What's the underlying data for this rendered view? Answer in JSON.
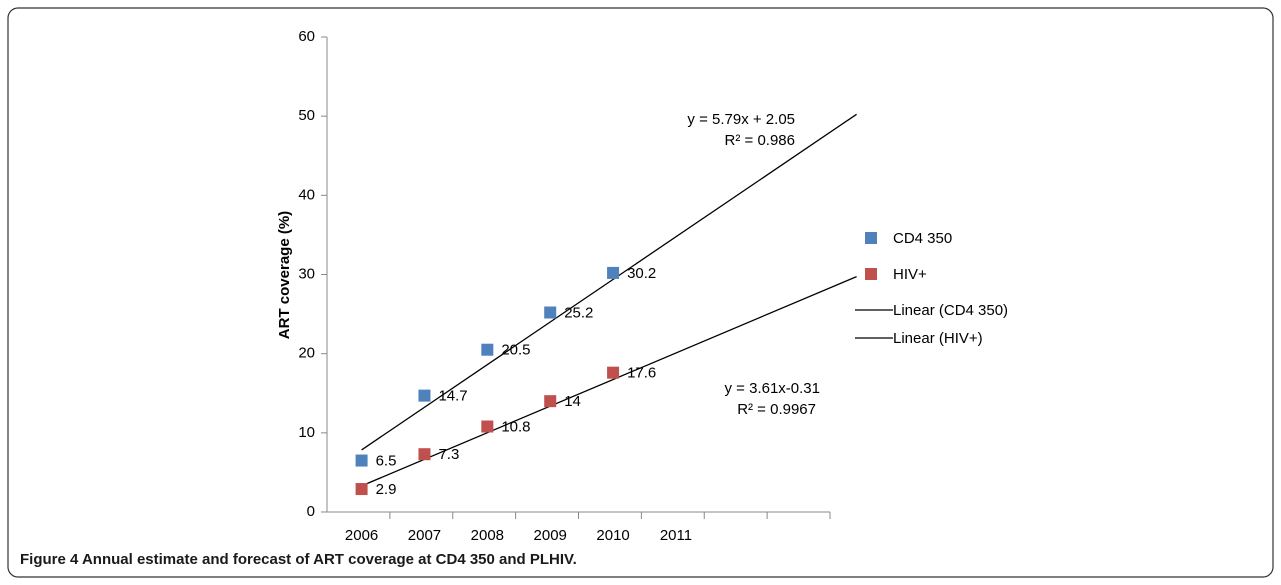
{
  "chart_data": {
    "type": "scatter",
    "y_label": "ART coverage (%)",
    "categories": [
      "2006",
      "2007",
      "2008",
      "2009",
      "2010",
      "2011",
      null,
      null
    ],
    "ylim": [
      0,
      60
    ],
    "yticks": [
      0,
      10,
      20,
      30,
      40,
      50,
      60
    ],
    "grid": false,
    "legend": "right",
    "series": [
      {
        "name": "CD4 350",
        "color": "#4f81bd",
        "values": [
          6.5,
          14.7,
          20.5,
          25.2,
          30.2
        ]
      },
      {
        "name": "HIV+",
        "color": "#c0504d",
        "values": [
          2.9,
          7.3,
          10.8,
          14,
          17.6
        ]
      }
    ],
    "trendlines": [
      {
        "name": "Linear (CD4 350)",
        "equation": "y = 5.79x + 2.05",
        "r2": "R² = 0.986"
      },
      {
        "name": "Linear (HIV+)",
        "equation": "y = 3.61x-0.31",
        "r2": "R² = 0.9967"
      }
    ]
  },
  "caption": "Figure 4 Annual estimate and forecast of ART coverage at CD4 350 and PLHIV."
}
